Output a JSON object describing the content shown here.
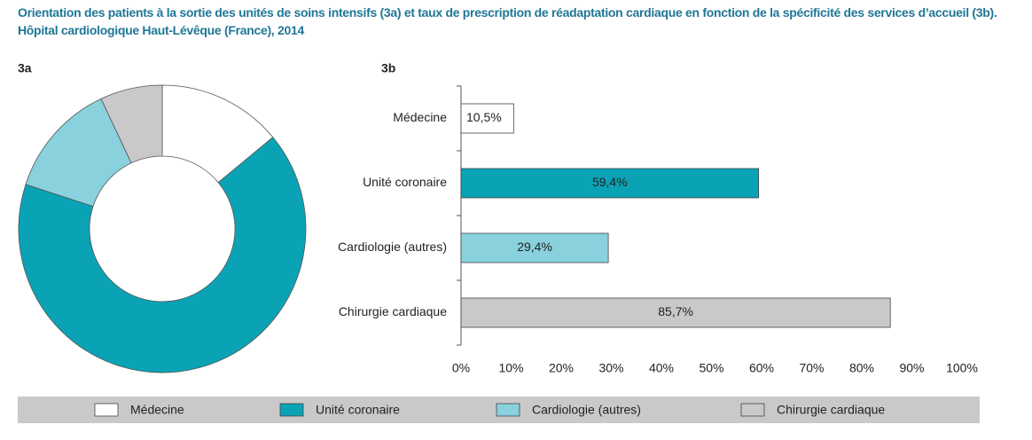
{
  "title": "Orientation des patients à la sortie des unités de soins intensifs (3a) et taux de prescription de réadaptation cardiaque en fonction de la spécificité des services d’accueil (3b). Hôpital cardiologique Haut-Lévêque (France), 2014",
  "chart_data": [
    {
      "type": "pie",
      "title": "3a",
      "categories": [
        "Médecine",
        "Unité coronaire",
        "Cardiologie (autres)",
        "Chirurgie cardiaque"
      ],
      "values": [
        14,
        66,
        13,
        7
      ],
      "colors": [
        "#ffffff",
        "#0aa3b5",
        "#88d1dd",
        "#c9c9c9"
      ]
    },
    {
      "type": "bar",
      "title": "3b",
      "orientation": "horizontal",
      "categories": [
        "Médecine",
        "Unité coronaire",
        "Cardiologie (autres)",
        "Chirurgie cardiaque"
      ],
      "values": [
        10.5,
        59.4,
        29.4,
        85.7
      ],
      "value_labels": [
        "10,5%",
        "59,4%",
        "29,4%",
        "85,7%"
      ],
      "colors": [
        "#ffffff",
        "#0aa3b5",
        "#88d1dd",
        "#c9c9c9"
      ],
      "xlim": [
        0,
        100
      ],
      "xticks": [
        {
          "value": 0,
          "label": "0%"
        },
        {
          "value": 10,
          "label": "10%"
        },
        {
          "value": 20,
          "label": "20%"
        },
        {
          "value": 30,
          "label": "30%"
        },
        {
          "value": 40,
          "label": "40%"
        },
        {
          "value": 50,
          "label": "50%"
        },
        {
          "value": 60,
          "label": "60%"
        },
        {
          "value": 70,
          "label": "70%"
        },
        {
          "value": 80,
          "label": "80%"
        },
        {
          "value": 90,
          "label": "90%"
        },
        {
          "value": 100,
          "label": "100%"
        }
      ]
    }
  ]
}
